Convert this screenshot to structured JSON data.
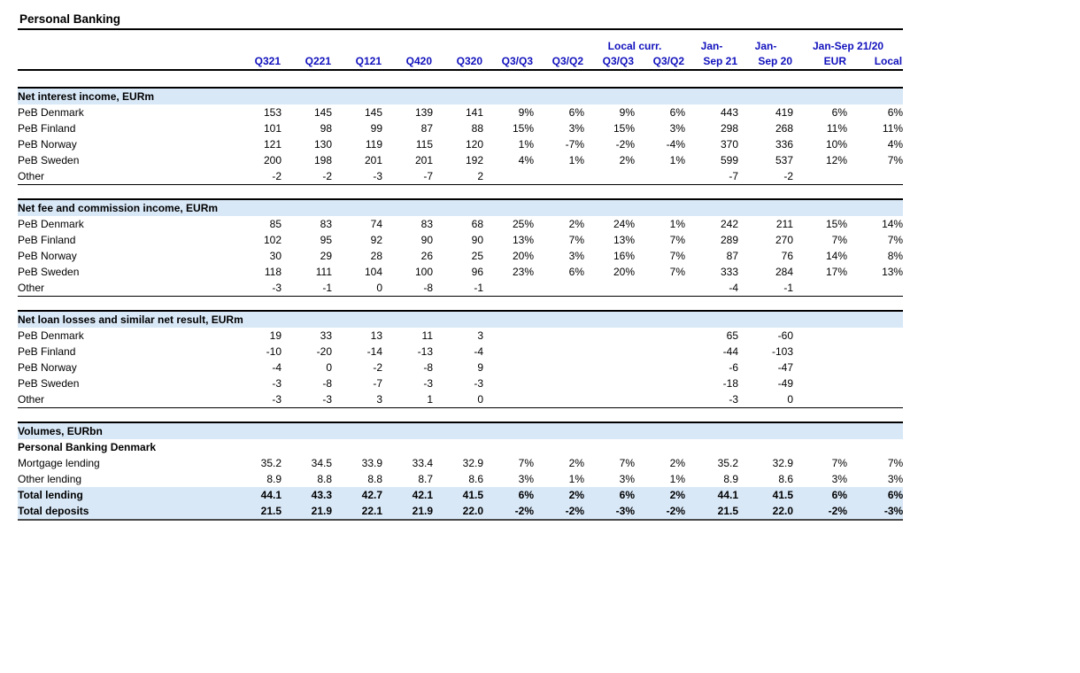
{
  "page_title": "Personal Banking",
  "header": {
    "group_local_curr": "Local curr.",
    "group_jan_over_sep21": "Jan-",
    "group_jan_over_sep20": "Jan-",
    "group_jansep_2120": "Jan-Sep 21/20",
    "columns": [
      "Q321",
      "Q221",
      "Q121",
      "Q420",
      "Q320",
      "Q3/Q3",
      "Q3/Q2",
      "Q3/Q3",
      "Q3/Q2",
      "Sep 21",
      "Sep 20",
      "EUR",
      "Local"
    ]
  },
  "sections": [
    {
      "title": "Net interest income, EURm",
      "rows": [
        {
          "label": "PeB Denmark",
          "bold": false,
          "highlight": false,
          "values": [
            "153",
            "145",
            "145",
            "139",
            "141",
            "9%",
            "6%",
            "9%",
            "6%",
            "443",
            "419",
            "6%",
            "6%"
          ]
        },
        {
          "label": "PeB Finland",
          "bold": false,
          "highlight": false,
          "values": [
            "101",
            "98",
            "99",
            "87",
            "88",
            "15%",
            "3%",
            "15%",
            "3%",
            "298",
            "268",
            "11%",
            "11%"
          ]
        },
        {
          "label": "PeB Norway",
          "bold": false,
          "highlight": false,
          "values": [
            "121",
            "130",
            "119",
            "115",
            "120",
            "1%",
            "-7%",
            "-2%",
            "-4%",
            "370",
            "336",
            "10%",
            "4%"
          ]
        },
        {
          "label": "PeB Sweden",
          "bold": false,
          "highlight": false,
          "values": [
            "200",
            "198",
            "201",
            "201",
            "192",
            "4%",
            "1%",
            "2%",
            "1%",
            "599",
            "537",
            "12%",
            "7%"
          ]
        },
        {
          "label": "Other",
          "bold": false,
          "highlight": false,
          "values": [
            "-2",
            "-2",
            "-3",
            "-7",
            "2",
            "",
            "",
            "",
            "",
            "-7",
            "-2",
            "",
            ""
          ]
        }
      ]
    },
    {
      "title": "Net fee and commission income, EURm",
      "rows": [
        {
          "label": "PeB Denmark",
          "bold": false,
          "highlight": false,
          "values": [
            "85",
            "83",
            "74",
            "83",
            "68",
            "25%",
            "2%",
            "24%",
            "1%",
            "242",
            "211",
            "15%",
            "14%"
          ]
        },
        {
          "label": "PeB Finland",
          "bold": false,
          "highlight": false,
          "values": [
            "102",
            "95",
            "92",
            "90",
            "90",
            "13%",
            "7%",
            "13%",
            "7%",
            "289",
            "270",
            "7%",
            "7%"
          ]
        },
        {
          "label": "PeB Norway",
          "bold": false,
          "highlight": false,
          "values": [
            "30",
            "29",
            "28",
            "26",
            "25",
            "20%",
            "3%",
            "16%",
            "7%",
            "87",
            "76",
            "14%",
            "8%"
          ]
        },
        {
          "label": "PeB Sweden",
          "bold": false,
          "highlight": false,
          "values": [
            "118",
            "111",
            "104",
            "100",
            "96",
            "23%",
            "6%",
            "20%",
            "7%",
            "333",
            "284",
            "17%",
            "13%"
          ]
        },
        {
          "label": "Other",
          "bold": false,
          "highlight": false,
          "values": [
            "-3",
            "-1",
            "0",
            "-8",
            "-1",
            "",
            "",
            "",
            "",
            "-4",
            "-1",
            "",
            ""
          ]
        }
      ]
    },
    {
      "title": "Net loan losses and similar net result, EURm",
      "rows": [
        {
          "label": "PeB Denmark",
          "bold": false,
          "highlight": false,
          "values": [
            "19",
            "33",
            "13",
            "11",
            "3",
            "",
            "",
            "",
            "",
            "65",
            "-60",
            "",
            ""
          ]
        },
        {
          "label": "PeB Finland",
          "bold": false,
          "highlight": false,
          "values": [
            "-10",
            "-20",
            "-14",
            "-13",
            "-4",
            "",
            "",
            "",
            "",
            "-44",
            "-103",
            "",
            ""
          ]
        },
        {
          "label": "PeB Norway",
          "bold": false,
          "highlight": false,
          "values": [
            "-4",
            "0",
            "-2",
            "-8",
            "9",
            "",
            "",
            "",
            "",
            "-6",
            "-47",
            "",
            ""
          ]
        },
        {
          "label": "PeB Sweden",
          "bold": false,
          "highlight": false,
          "values": [
            "-3",
            "-8",
            "-7",
            "-3",
            "-3",
            "",
            "",
            "",
            "",
            "-18",
            "-49",
            "",
            ""
          ]
        },
        {
          "label": "Other",
          "bold": false,
          "highlight": false,
          "values": [
            "-3",
            "-3",
            "3",
            "1",
            "0",
            "",
            "",
            "",
            "",
            "-3",
            "0",
            "",
            ""
          ]
        }
      ]
    },
    {
      "title": "Volumes, EURbn",
      "rows": [
        {
          "label": "Personal Banking Denmark",
          "bold": true,
          "highlight": false,
          "values": [
            "",
            "",
            "",
            "",
            "",
            "",
            "",
            "",
            "",
            "",
            "",
            "",
            ""
          ]
        },
        {
          "label": "Mortgage lending",
          "bold": false,
          "highlight": false,
          "values": [
            "35.2",
            "34.5",
            "33.9",
            "33.4",
            "32.9",
            "7%",
            "2%",
            "7%",
            "2%",
            "35.2",
            "32.9",
            "7%",
            "7%"
          ]
        },
        {
          "label": "Other lending",
          "bold": false,
          "highlight": false,
          "values": [
            "8.9",
            "8.8",
            "8.8",
            "8.7",
            "8.6",
            "3%",
            "1%",
            "3%",
            "1%",
            "8.9",
            "8.6",
            "3%",
            "3%"
          ]
        },
        {
          "label": "Total lending",
          "bold": true,
          "highlight": true,
          "values": [
            "44.1",
            "43.3",
            "42.7",
            "42.1",
            "41.5",
            "6%",
            "2%",
            "6%",
            "2%",
            "44.1",
            "41.5",
            "6%",
            "6%"
          ]
        },
        {
          "label": "Total deposits",
          "bold": true,
          "highlight": true,
          "values": [
            "21.5",
            "21.9",
            "22.1",
            "21.9",
            "22.0",
            "-2%",
            "-2%",
            "-3%",
            "-2%",
            "21.5",
            "22.0",
            "-2%",
            "-3%"
          ]
        }
      ]
    }
  ],
  "colors": {
    "header_blue": "#1111BD",
    "section_band_blue": "#D9E8F7",
    "rule_black": "#000000",
    "bottom_rule_gray": "#4a4a4a"
  }
}
